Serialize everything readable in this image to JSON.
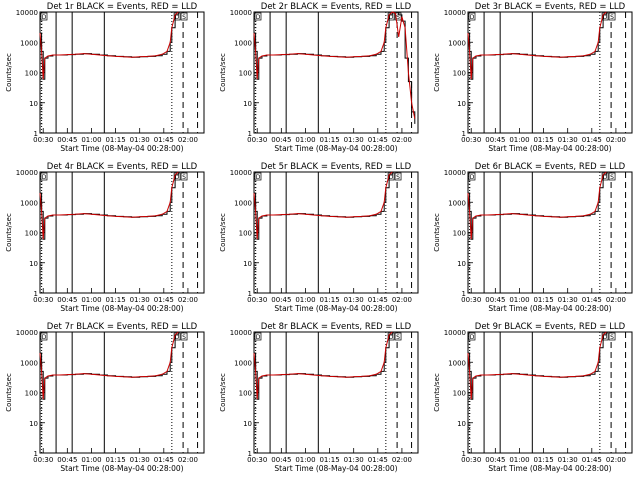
{
  "figure": {
    "shared": {
      "type": "line",
      "xlabel": "Start Time (08-May-04 00:28:00)",
      "ylabel": "Counts/sec",
      "y_scale": "log",
      "ylim": [
        1,
        10000
      ],
      "y_ticks": [
        1,
        10,
        100,
        1000,
        10000
      ],
      "y_tick_labels": [
        "1",
        "10",
        "100",
        "1000",
        "10000"
      ],
      "xlim": [
        "00:28",
        "02:10"
      ],
      "x_ticks": [
        "00:30",
        "00:45",
        "01:00",
        "01:15",
        "01:30",
        "01:45",
        "02:00"
      ],
      "series": [
        {
          "color": "#000000",
          "style": "histogram"
        },
        {
          "color": "#cc0000",
          "style": "line"
        }
      ],
      "markers": {
        "solid": [
          "00:38",
          "00:48",
          "01:08"
        ],
        "dotted": [
          "00:29",
          "01:50"
        ],
        "dashed": [
          "01:57",
          "02:06"
        ]
      },
      "box_labels": [
        "D",
        "S"
      ]
    },
    "chart_data": [
      {
        "title": "Det 1r BLACK = Events, RED = LLD",
        "x": [
          "00:28",
          "00:29",
          "00:30",
          "00:31",
          "00:33",
          "00:36",
          "00:40",
          "00:45",
          "00:50",
          "00:55",
          "01:00",
          "01:05",
          "01:10",
          "01:15",
          "01:20",
          "01:25",
          "01:30",
          "01:35",
          "01:40",
          "01:44",
          "01:47",
          "01:49",
          "01:50",
          "01:52",
          "01:54"
        ],
        "black_values": [
          2000,
          500,
          60,
          300,
          350,
          380,
          380,
          390,
          400,
          420,
          400,
          380,
          360,
          340,
          330,
          320,
          330,
          340,
          360,
          400,
          500,
          1000,
          3000,
          8000,
          10000
        ],
        "red_values": [
          2000,
          500,
          60,
          300,
          350,
          380,
          380,
          390,
          400,
          420,
          400,
          380,
          360,
          340,
          330,
          320,
          330,
          340,
          360,
          400,
          500,
          1000,
          3000,
          8000,
          10000
        ]
      },
      {
        "title": "Det 2r BLACK = Events, RED = LLD",
        "x": [
          "00:28",
          "00:29",
          "00:30",
          "00:31",
          "00:33",
          "00:36",
          "00:40",
          "00:45",
          "00:50",
          "00:55",
          "01:00",
          "01:05",
          "01:10",
          "01:15",
          "01:20",
          "01:25",
          "01:30",
          "01:35",
          "01:40",
          "01:44",
          "01:47",
          "01:49",
          "01:50",
          "01:52",
          "01:54",
          "01:56",
          "01:58",
          "02:00",
          "02:02",
          "02:04",
          "02:06",
          "02:08"
        ],
        "black_values": [
          2000,
          500,
          60,
          300,
          350,
          380,
          380,
          390,
          400,
          420,
          400,
          380,
          360,
          340,
          330,
          320,
          330,
          340,
          360,
          400,
          500,
          1000,
          3000,
          8000,
          10000,
          10000,
          8000,
          5000,
          300,
          50,
          5,
          2
        ],
        "red_values": [
          2000,
          500,
          60,
          300,
          350,
          380,
          380,
          390,
          400,
          420,
          400,
          380,
          360,
          340,
          330,
          320,
          330,
          340,
          360,
          400,
          500,
          1000,
          3000,
          8000,
          10000,
          9000,
          1500,
          7000,
          3000,
          100,
          10,
          3
        ]
      },
      {
        "title": "Det 3r BLACK = Events, RED = LLD",
        "x": [
          "00:28",
          "00:29",
          "00:30",
          "00:31",
          "00:33",
          "00:36",
          "00:40",
          "00:45",
          "00:50",
          "00:55",
          "01:00",
          "01:05",
          "01:10",
          "01:15",
          "01:20",
          "01:25",
          "01:30",
          "01:35",
          "01:40",
          "01:44",
          "01:47",
          "01:49",
          "01:50",
          "01:52",
          "01:54"
        ],
        "black_values": [
          2000,
          500,
          60,
          300,
          350,
          380,
          380,
          390,
          400,
          420,
          400,
          380,
          360,
          340,
          330,
          320,
          330,
          340,
          360,
          400,
          500,
          1000,
          3000,
          8000,
          10000
        ],
        "red_values": [
          2000,
          500,
          60,
          300,
          350,
          380,
          380,
          390,
          400,
          420,
          400,
          380,
          360,
          340,
          330,
          320,
          330,
          340,
          360,
          400,
          500,
          1000,
          3000,
          8000,
          10000
        ]
      },
      {
        "title": "Det 4r BLACK = Events, RED = LLD",
        "x": [
          "00:28",
          "00:29",
          "00:30",
          "00:31",
          "00:33",
          "00:36",
          "00:40",
          "00:45",
          "00:50",
          "00:55",
          "01:00",
          "01:05",
          "01:10",
          "01:15",
          "01:20",
          "01:25",
          "01:30",
          "01:35",
          "01:40",
          "01:44",
          "01:47",
          "01:49",
          "01:50",
          "01:52",
          "01:54"
        ],
        "black_values": [
          2000,
          500,
          60,
          300,
          350,
          380,
          380,
          390,
          400,
          420,
          400,
          380,
          360,
          340,
          330,
          320,
          330,
          340,
          360,
          400,
          500,
          1000,
          3000,
          8000,
          10000
        ],
        "red_values": [
          2000,
          500,
          60,
          300,
          350,
          380,
          380,
          390,
          400,
          420,
          400,
          380,
          360,
          340,
          330,
          320,
          330,
          340,
          360,
          400,
          500,
          1000,
          3000,
          8000,
          10000
        ]
      },
      {
        "title": "Det 5r BLACK = Events, RED = LLD",
        "x": [
          "00:28",
          "00:29",
          "00:30",
          "00:31",
          "00:33",
          "00:36",
          "00:40",
          "00:45",
          "00:50",
          "00:55",
          "01:00",
          "01:05",
          "01:10",
          "01:15",
          "01:20",
          "01:25",
          "01:30",
          "01:35",
          "01:40",
          "01:44",
          "01:47",
          "01:49",
          "01:50",
          "01:52",
          "01:54"
        ],
        "black_values": [
          2000,
          500,
          60,
          300,
          350,
          380,
          380,
          390,
          400,
          420,
          400,
          380,
          360,
          340,
          330,
          320,
          330,
          340,
          360,
          400,
          500,
          1000,
          3000,
          8000,
          10000
        ],
        "red_values": [
          2000,
          500,
          60,
          300,
          350,
          380,
          380,
          390,
          400,
          420,
          400,
          380,
          360,
          340,
          330,
          320,
          330,
          340,
          360,
          400,
          500,
          1000,
          3000,
          8000,
          10000
        ]
      },
      {
        "title": "Det 6r BLACK = Events, RED = LLD",
        "x": [
          "00:28",
          "00:29",
          "00:30",
          "00:31",
          "00:33",
          "00:36",
          "00:40",
          "00:45",
          "00:50",
          "00:55",
          "01:00",
          "01:05",
          "01:10",
          "01:15",
          "01:20",
          "01:25",
          "01:30",
          "01:35",
          "01:40",
          "01:44",
          "01:47",
          "01:49",
          "01:50",
          "01:52",
          "01:54"
        ],
        "black_values": [
          2000,
          500,
          60,
          300,
          350,
          380,
          380,
          390,
          400,
          420,
          400,
          380,
          360,
          340,
          330,
          320,
          330,
          340,
          360,
          400,
          500,
          1000,
          3000,
          8000,
          10000
        ],
        "red_values": [
          2000,
          500,
          60,
          300,
          350,
          380,
          380,
          390,
          400,
          420,
          400,
          380,
          360,
          340,
          330,
          320,
          330,
          340,
          360,
          400,
          500,
          1000,
          3000,
          8000,
          10000
        ]
      },
      {
        "title": "Det 7r BLACK = Events, RED = LLD",
        "x": [
          "00:28",
          "00:29",
          "00:30",
          "00:31",
          "00:33",
          "00:36",
          "00:40",
          "00:45",
          "00:50",
          "00:55",
          "01:00",
          "01:05",
          "01:10",
          "01:15",
          "01:20",
          "01:25",
          "01:30",
          "01:35",
          "01:40",
          "01:44",
          "01:47",
          "01:49",
          "01:50",
          "01:52",
          "01:54"
        ],
        "black_values": [
          2000,
          500,
          60,
          300,
          350,
          380,
          380,
          390,
          400,
          420,
          400,
          380,
          360,
          340,
          330,
          320,
          330,
          340,
          360,
          400,
          500,
          1000,
          3000,
          8000,
          10000
        ],
        "red_values": [
          2000,
          500,
          60,
          300,
          350,
          380,
          380,
          390,
          400,
          420,
          400,
          380,
          360,
          340,
          330,
          320,
          330,
          340,
          360,
          400,
          500,
          1000,
          3000,
          8000,
          10000
        ]
      },
      {
        "title": "Det 8r BLACK = Events, RED = LLD",
        "x": [
          "00:28",
          "00:29",
          "00:30",
          "00:31",
          "00:33",
          "00:36",
          "00:40",
          "00:45",
          "00:50",
          "00:55",
          "01:00",
          "01:05",
          "01:10",
          "01:15",
          "01:20",
          "01:25",
          "01:30",
          "01:35",
          "01:40",
          "01:44",
          "01:47",
          "01:49",
          "01:50",
          "01:52",
          "01:54"
        ],
        "black_values": [
          2000,
          500,
          60,
          300,
          350,
          380,
          380,
          390,
          400,
          420,
          400,
          380,
          360,
          340,
          330,
          320,
          330,
          340,
          360,
          400,
          500,
          1000,
          3000,
          8000,
          10000
        ],
        "red_values": [
          2000,
          500,
          60,
          300,
          350,
          380,
          380,
          390,
          400,
          420,
          400,
          380,
          360,
          340,
          330,
          320,
          330,
          340,
          360,
          400,
          500,
          1000,
          3000,
          8000,
          10000
        ]
      },
      {
        "title": "Det 9r BLACK = Events, RED = LLD",
        "x": [
          "00:28",
          "00:29",
          "00:30",
          "00:31",
          "00:33",
          "00:36",
          "00:40",
          "00:45",
          "00:50",
          "00:55",
          "01:00",
          "01:05",
          "01:10",
          "01:15",
          "01:20",
          "01:25",
          "01:30",
          "01:35",
          "01:40",
          "01:44",
          "01:47",
          "01:49",
          "01:50",
          "01:52",
          "01:54"
        ],
        "black_values": [
          2000,
          500,
          60,
          300,
          350,
          380,
          380,
          390,
          400,
          420,
          400,
          380,
          360,
          340,
          330,
          320,
          330,
          340,
          360,
          400,
          500,
          1000,
          3000,
          8000,
          10000
        ],
        "red_values": [
          2000,
          500,
          60,
          300,
          350,
          380,
          380,
          390,
          400,
          420,
          400,
          380,
          360,
          340,
          330,
          320,
          330,
          340,
          360,
          400,
          500,
          1000,
          3000,
          8000,
          10000
        ]
      }
    ]
  }
}
